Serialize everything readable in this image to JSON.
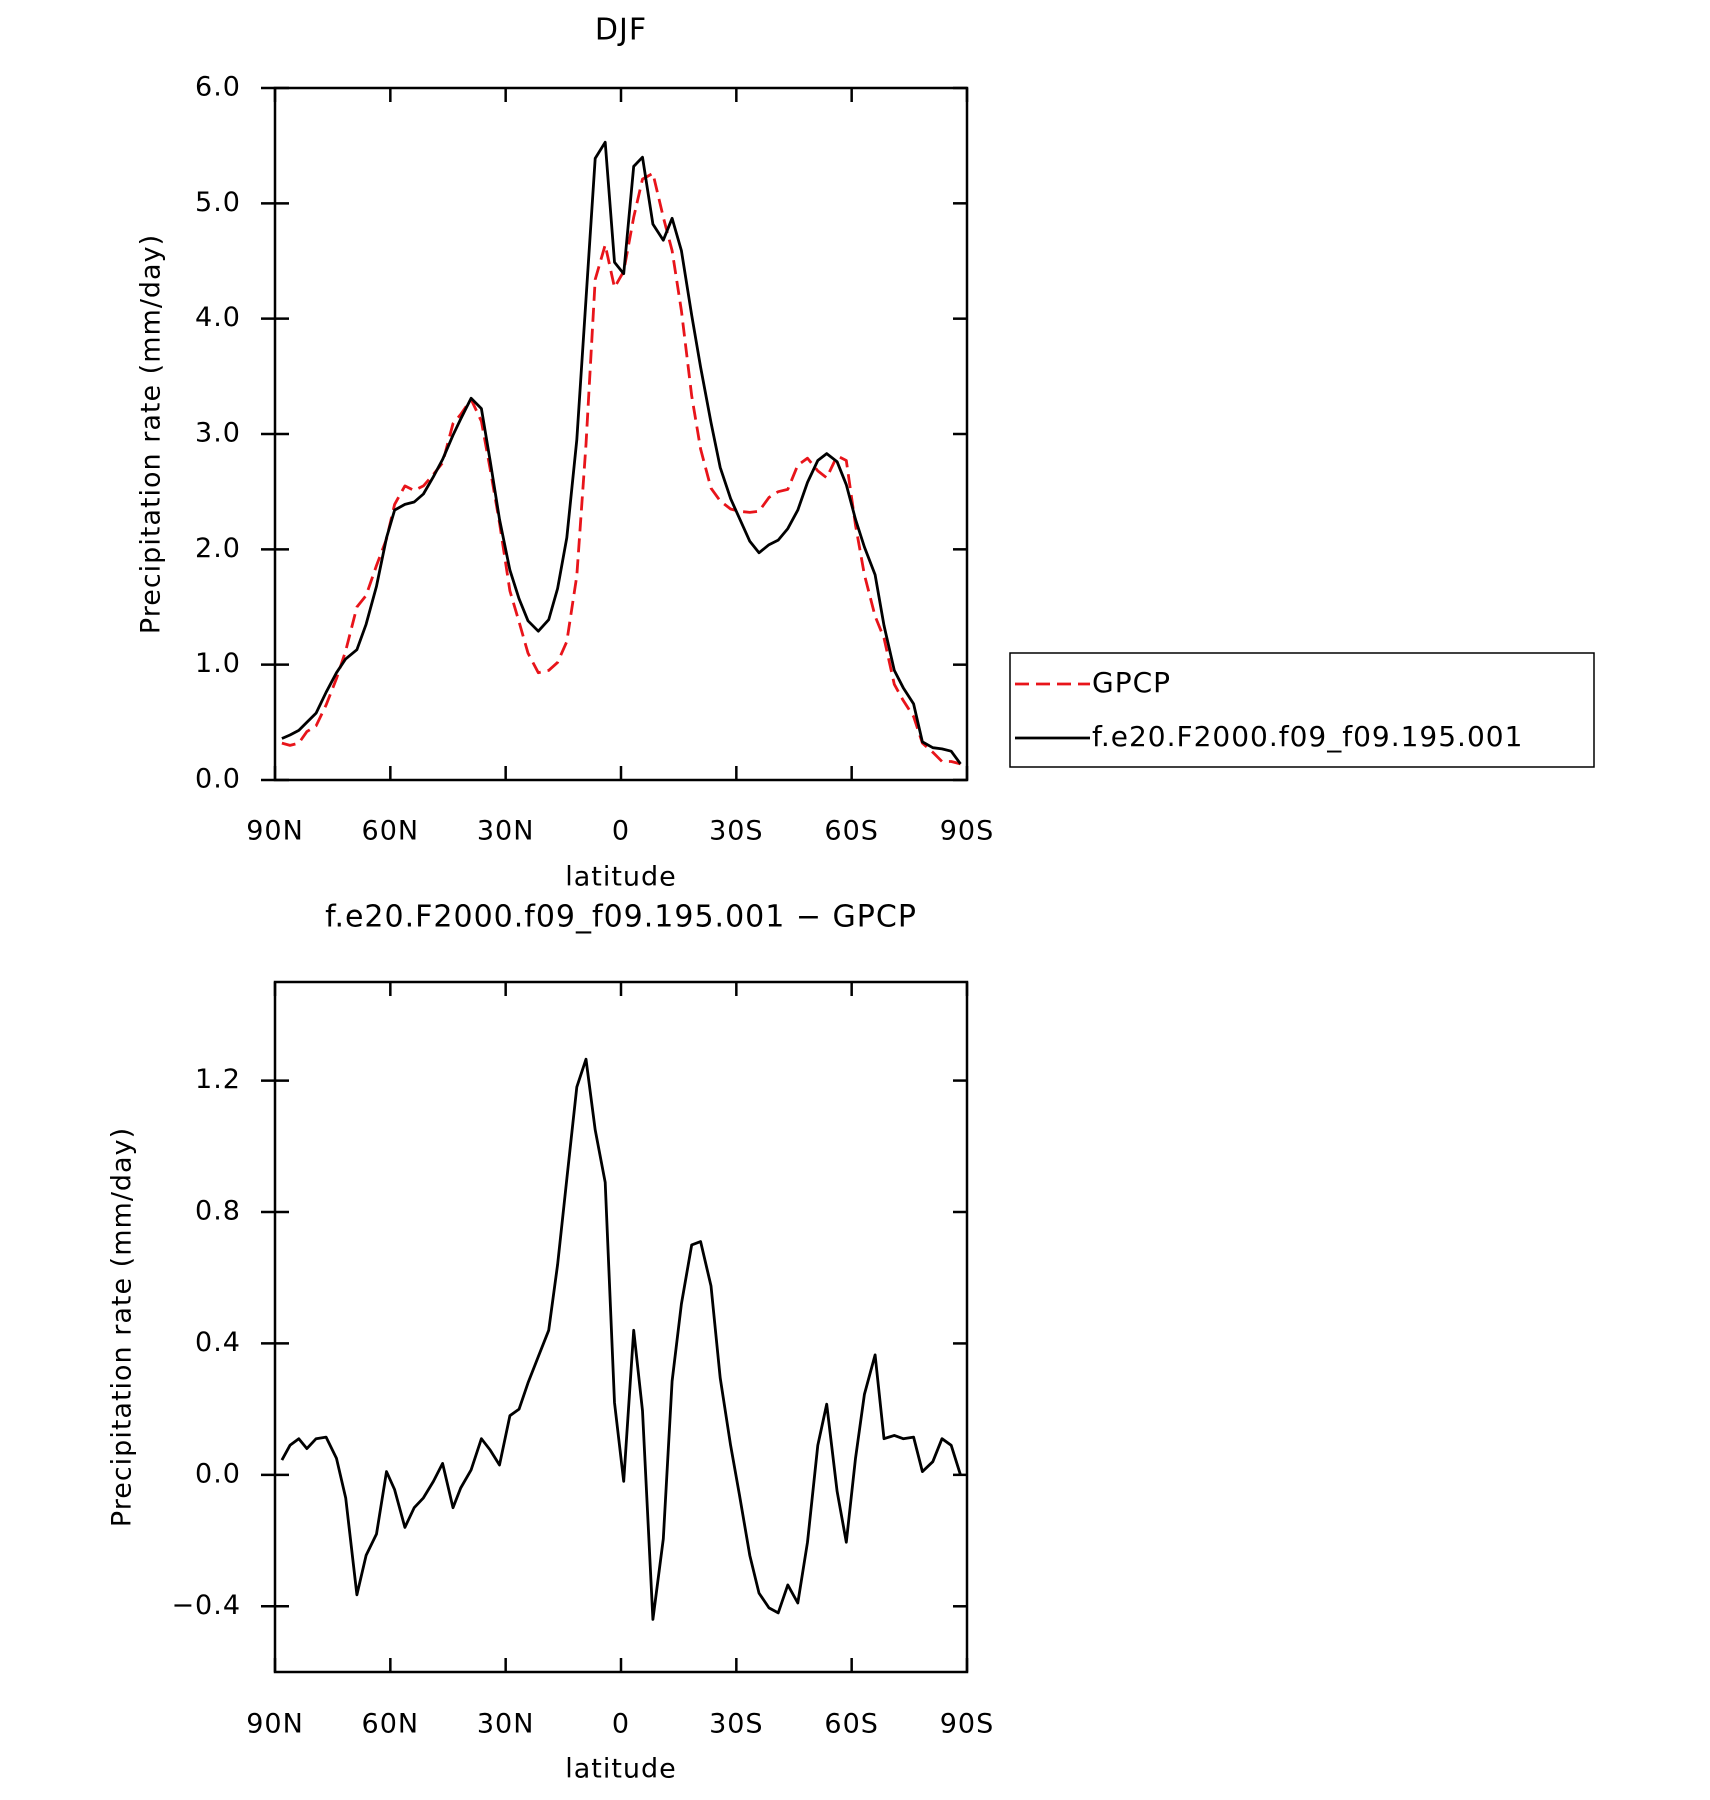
{
  "chart_data": [
    {
      "type": "line",
      "title": "DJF",
      "xlabel": "latitude",
      "ylabel": "Precipitation rate (mm/day)",
      "x": [
        88.2,
        86.1,
        83.8,
        81.7,
        79.3,
        76.7,
        74.0,
        71.6,
        68.7,
        66.3,
        63.6,
        61.0,
        58.9,
        56.2,
        53.8,
        51.4,
        48.8,
        46.4,
        43.7,
        41.7,
        39.0,
        36.3,
        34.0,
        31.6,
        28.9,
        26.5,
        24.2,
        21.5,
        18.8,
        16.5,
        14.1,
        11.5,
        9.1,
        6.7,
        4.1,
        1.7,
        -0.7,
        -3.3,
        -5.6,
        -8.3,
        -11.0,
        -13.3,
        -15.7,
        -18.4,
        -20.7,
        -23.4,
        -25.8,
        -28.5,
        -30.8,
        -33.5,
        -35.9,
        -38.5,
        -40.9,
        -43.4,
        -46.0,
        -48.5,
        -51.2,
        -53.5,
        -56.2,
        -58.6,
        -61.0,
        -63.3,
        -66.1,
        -68.4,
        -71.1,
        -73.4,
        -76.1,
        -78.4,
        -81.1,
        -83.5,
        -85.9,
        -88.3
      ],
      "series": [
        {
          "name": "GPCP",
          "color": "#e8141a",
          "linestyle": "dashed",
          "values": [
            0.32,
            0.3,
            0.32,
            0.42,
            0.47,
            0.65,
            0.88,
            1.12,
            1.5,
            1.6,
            1.86,
            2.09,
            2.39,
            2.55,
            2.51,
            2.55,
            2.65,
            2.75,
            3.09,
            3.17,
            3.3,
            3.11,
            2.69,
            2.23,
            1.64,
            1.37,
            1.1,
            0.93,
            0.95,
            1.02,
            1.2,
            1.77,
            2.91,
            4.34,
            4.64,
            4.27,
            4.41,
            4.88,
            5.21,
            5.26,
            4.88,
            4.59,
            4.07,
            3.33,
            2.87,
            2.53,
            2.42,
            2.35,
            2.33,
            2.32,
            2.33,
            2.45,
            2.5,
            2.52,
            2.73,
            2.79,
            2.68,
            2.62,
            2.81,
            2.77,
            2.21,
            1.78,
            1.42,
            1.23,
            0.83,
            0.69,
            0.55,
            0.32,
            0.24,
            0.16,
            0.16,
            0.14
          ]
        },
        {
          "name": "f.e20.F2000.f09_f09.195.001",
          "color": "#000000",
          "linestyle": "solid",
          "values": [
            0.36,
            0.39,
            0.43,
            0.5,
            0.58,
            0.76,
            0.93,
            1.05,
            1.13,
            1.35,
            1.68,
            2.1,
            2.34,
            2.39,
            2.41,
            2.48,
            2.63,
            2.78,
            2.99,
            3.13,
            3.31,
            3.22,
            2.76,
            2.26,
            1.82,
            1.57,
            1.38,
            1.29,
            1.39,
            1.66,
            2.1,
            2.95,
            4.17,
            5.39,
            5.53,
            4.49,
            4.39,
            5.32,
            5.4,
            4.82,
            4.68,
            4.87,
            4.59,
            4.03,
            3.58,
            3.1,
            2.71,
            2.44,
            2.27,
            2.07,
            1.97,
            2.04,
            2.08,
            2.18,
            2.34,
            2.58,
            2.77,
            2.83,
            2.76,
            2.56,
            2.26,
            2.02,
            1.78,
            1.34,
            0.95,
            0.8,
            0.66,
            0.33,
            0.28,
            0.27,
            0.25,
            0.14
          ]
        }
      ],
      "xlim": [
        90,
        -90
      ],
      "xticks": [
        {
          "value": 90,
          "label": "90N"
        },
        {
          "value": 60,
          "label": "60N"
        },
        {
          "value": 30,
          "label": "30N"
        },
        0,
        {
          "value": -30,
          "label": "30S"
        },
        {
          "value": -60,
          "label": "60S"
        },
        {
          "value": -90,
          "label": "90S"
        }
      ],
      "ylim": [
        0,
        6
      ],
      "yticks": [
        {
          "value": 0,
          "label": "0.0"
        },
        {
          "value": 1,
          "label": "1.0"
        },
        {
          "value": 2,
          "label": "2.0"
        },
        {
          "value": 3,
          "label": "3.0"
        },
        {
          "value": 4,
          "label": "4.0"
        },
        {
          "value": 5,
          "label": "5.0"
        },
        {
          "value": 6,
          "label": "6.0"
        }
      ],
      "legend": "outside right"
    },
    {
      "type": "line",
      "title": "f.e20.F2000.f09_f09.195.001 − GPCP",
      "xlabel": "latitude",
      "ylabel": "Precipitation rate (mm/day)",
      "x": [
        88.2,
        86.1,
        83.8,
        81.7,
        79.3,
        76.7,
        74.0,
        71.6,
        68.7,
        66.3,
        63.6,
        61.0,
        58.9,
        56.2,
        53.8,
        51.4,
        48.8,
        46.4,
        43.7,
        41.7,
        39.0,
        36.3,
        34.0,
        31.6,
        28.9,
        26.5,
        24.2,
        21.5,
        18.8,
        16.5,
        14.1,
        11.5,
        9.1,
        6.7,
        4.1,
        1.7,
        -0.7,
        -3.3,
        -5.6,
        -8.3,
        -11.0,
        -13.3,
        -15.7,
        -18.4,
        -20.7,
        -23.4,
        -25.8,
        -28.5,
        -30.8,
        -33.5,
        -35.9,
        -38.5,
        -40.9,
        -43.4,
        -46.0,
        -48.5,
        -51.2,
        -53.5,
        -56.2,
        -58.6,
        -61.0,
        -63.3,
        -66.1,
        -68.4,
        -71.1,
        -73.4,
        -76.1,
        -78.4,
        -81.1,
        -83.5,
        -85.9,
        -88.3
      ],
      "values": [
        0.045,
        0.09,
        0.11,
        0.08,
        0.11,
        0.115,
        0.05,
        -0.07,
        -0.365,
        -0.245,
        -0.18,
        0.01,
        -0.045,
        -0.16,
        -0.1,
        -0.07,
        -0.02,
        0.035,
        -0.1,
        -0.04,
        0.015,
        0.11,
        0.075,
        0.03,
        0.18,
        0.2,
        0.28,
        0.36,
        0.44,
        0.64,
        0.9,
        1.18,
        1.265,
        1.05,
        0.89,
        0.22,
        -0.02,
        0.44,
        0.195,
        -0.44,
        -0.195,
        0.285,
        0.52,
        0.7,
        0.71,
        0.575,
        0.295,
        0.09,
        -0.06,
        -0.245,
        -0.36,
        -0.405,
        -0.42,
        -0.335,
        -0.39,
        -0.205,
        0.09,
        0.215,
        -0.05,
        -0.205,
        0.05,
        0.245,
        0.365,
        0.11,
        0.12,
        0.11,
        0.115,
        0.01,
        0.04,
        0.11,
        0.09,
        0.0
      ],
      "color": "#000000",
      "xlim": [
        90,
        -90
      ],
      "xticks": [
        {
          "value": 90,
          "label": "90N"
        },
        {
          "value": 60,
          "label": "60N"
        },
        {
          "value": 30,
          "label": "30N"
        },
        0,
        {
          "value": -30,
          "label": "30S"
        },
        {
          "value": -60,
          "label": "60S"
        },
        {
          "value": -90,
          "label": "90S"
        }
      ],
      "ylim": [
        -0.6,
        1.5
      ],
      "yticks": [
        {
          "value": -0.4,
          "label": "−0.4"
        },
        {
          "value": 0,
          "label": "0.0"
        },
        0.4,
        0.8,
        1.2
      ]
    }
  ]
}
